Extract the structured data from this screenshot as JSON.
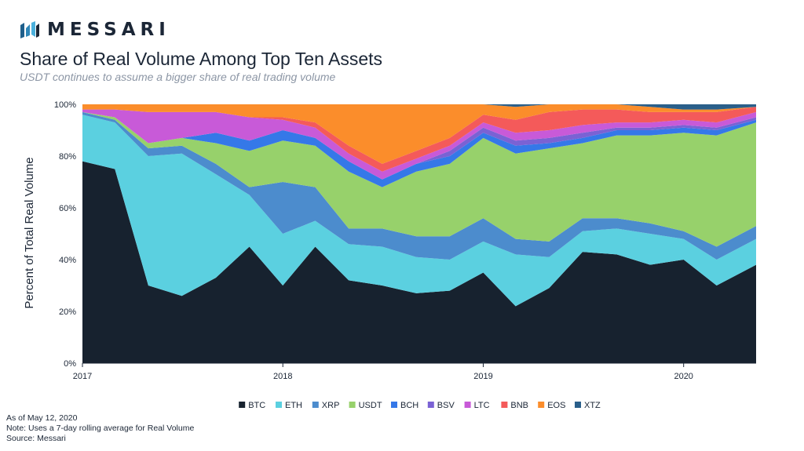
{
  "brand": {
    "name": "MESSARI",
    "logo_icon": "messari-logo-icon"
  },
  "header": {
    "title": "Share of Real Volume Among Top Ten Assets",
    "subtitle": "USDT continues to assume a bigger share of real trading volume"
  },
  "footer": {
    "as_of": "As of May 12, 2020",
    "note": "Note: Uses a 7-day rolling average for Real Volume",
    "source": "Source: Messari"
  },
  "chart_data": {
    "type": "area",
    "stacked": true,
    "normalized": true,
    "ylabel": "Percent of Total Real Volume",
    "xlabel": "",
    "ylim": [
      0,
      100
    ],
    "y_ticks": [
      "0%",
      "20%",
      "40%",
      "60%",
      "80%",
      "100%"
    ],
    "x_ticks": [
      {
        "label": "2017",
        "date": "2017-01-01"
      },
      {
        "label": "2018",
        "date": "2018-01-01"
      },
      {
        "label": "2019",
        "date": "2019-01-01"
      },
      {
        "label": "2020",
        "date": "2020-01-01"
      }
    ],
    "x_range": [
      "2017-01-01",
      "2020-05-12"
    ],
    "legend_position": "bottom",
    "grid": false,
    "x": [
      "2017-01",
      "2017-03",
      "2017-05",
      "2017-07",
      "2017-09",
      "2017-11",
      "2018-01",
      "2018-03",
      "2018-05",
      "2018-07",
      "2018-09",
      "2018-11",
      "2019-01",
      "2019-03",
      "2019-05",
      "2019-07",
      "2019-09",
      "2019-11",
      "2020-01",
      "2020-03",
      "2020-05"
    ],
    "series": [
      {
        "name": "BTC",
        "color": "#17222f",
        "values": [
          78,
          75,
          30,
          26,
          33,
          45,
          30,
          45,
          32,
          30,
          27,
          28,
          35,
          22,
          29,
          43,
          42,
          38,
          40,
          30,
          38
        ]
      },
      {
        "name": "ETH",
        "color": "#5bd0e0",
        "values": [
          18,
          18,
          50,
          55,
          40,
          20,
          20,
          10,
          14,
          15,
          14,
          12,
          12,
          20,
          12,
          8,
          10,
          12,
          8,
          10,
          10
        ]
      },
      {
        "name": "XRP",
        "color": "#4c8ccd",
        "values": [
          1,
          1,
          3,
          3,
          4,
          3,
          20,
          13,
          6,
          7,
          8,
          9,
          9,
          6,
          6,
          5,
          4,
          4,
          3,
          5,
          5
        ]
      },
      {
        "name": "USDT",
        "color": "#97d16b",
        "values": [
          0,
          1,
          2,
          3,
          8,
          14,
          16,
          16,
          22,
          16,
          25,
          28,
          31,
          33,
          36,
          29,
          32,
          34,
          38,
          43,
          40
        ]
      },
      {
        "name": "BCH",
        "color": "#3578e8",
        "values": [
          0,
          0,
          0,
          0,
          4,
          4,
          4,
          3,
          4,
          3,
          3,
          3,
          2,
          3,
          2,
          2,
          2,
          2,
          2,
          2,
          1
        ]
      },
      {
        "name": "BSV",
        "color": "#7a62d4",
        "values": [
          0,
          0,
          0,
          0,
          0,
          0,
          0,
          0,
          0,
          0,
          0,
          2,
          2,
          2,
          2,
          2,
          1,
          1,
          1,
          1,
          1
        ]
      },
      {
        "name": "LTC",
        "color": "#c85ad8",
        "values": [
          1,
          3,
          12,
          10,
          8,
          9,
          4,
          4,
          3,
          3,
          2,
          2,
          2,
          3,
          3,
          3,
          2,
          2,
          2,
          2,
          2
        ]
      },
      {
        "name": "BNB",
        "color": "#f45a5a",
        "values": [
          0,
          0,
          0,
          0,
          0,
          0,
          1,
          2,
          3,
          3,
          3,
          3,
          3,
          5,
          7,
          6,
          5,
          4,
          3,
          4,
          2
        ]
      },
      {
        "name": "EOS",
        "color": "#fb8d2b",
        "values": [
          2,
          2,
          3,
          3,
          3,
          5,
          5,
          7,
          16,
          23,
          18,
          13,
          4,
          5,
          3,
          2,
          2,
          2,
          1,
          1,
          0
        ]
      },
      {
        "name": "XTZ",
        "color": "#2a5f8a",
        "values": [
          0,
          0,
          0,
          0,
          0,
          0,
          0,
          0,
          0,
          0,
          0,
          0,
          0,
          1,
          0,
          0,
          0,
          1,
          2,
          2,
          1
        ]
      }
    ]
  }
}
